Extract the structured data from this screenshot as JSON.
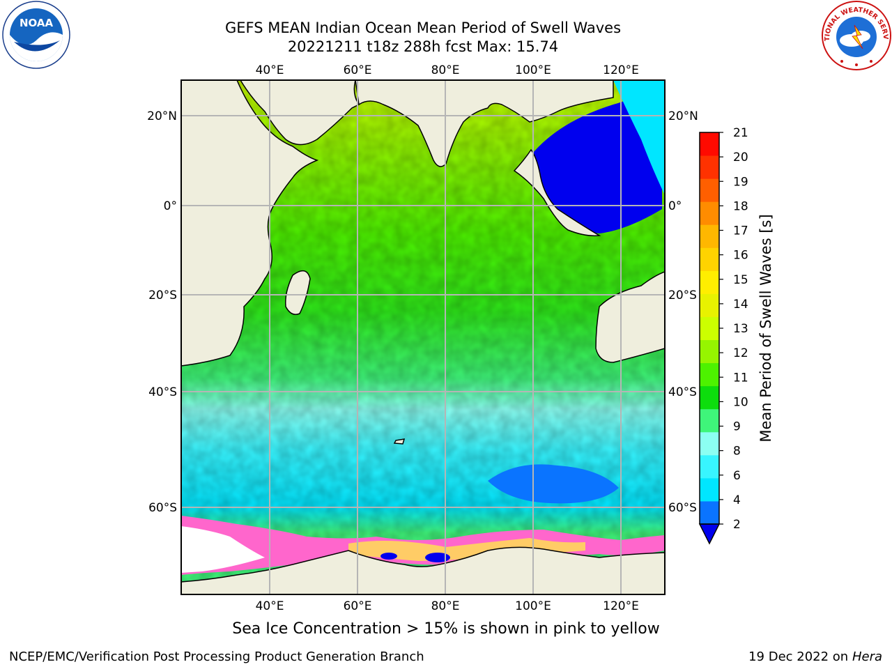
{
  "header": {
    "title_line1": "GEFS MEAN Indian Ocean Mean Period of Swell Waves",
    "title_line2": "20221211 t18z 288h fcst   Max: 15.74"
  },
  "map": {
    "lon_ticks": [
      "40°E",
      "60°E",
      "80°E",
      "100°E",
      "120°E"
    ],
    "lat_ticks": [
      "20°N",
      "0°",
      "20°S",
      "40°S",
      "60°S"
    ],
    "colors": {
      "land": "#efeedd",
      "ice": "#ff66cc",
      "ice_high": "#ffcc66",
      "open": "#ffffff",
      "grid": "#b5b5b5"
    }
  },
  "colorbar": {
    "label": "Mean Period of Swell Waves [s]",
    "ticks": [
      "2",
      "4",
      "6",
      "8",
      "9",
      "10",
      "11",
      "12",
      "13",
      "14",
      "15",
      "16",
      "17",
      "18",
      "19",
      "20",
      "21"
    ],
    "colors": [
      "#0a74ff",
      "#00e6ff",
      "#38f5ff",
      "#8cfff2",
      "#3ff57a",
      "#0ddd0d",
      "#4df200",
      "#96f500",
      "#ccff00",
      "#e8f200",
      "#ffee00",
      "#ffd300",
      "#ffb700",
      "#ff8c00",
      "#ff5f00",
      "#ff3200",
      "#ff0a00"
    ],
    "under_color": "#0000ee"
  },
  "footer": {
    "note": "Sea Ice Concentration > 15% is shown in pink to yellow",
    "left": "NCEP/EMC/Verification Post Processing Product Generation Branch",
    "right_prefix": "19 Dec 2022 on",
    "right_host": "Hera"
  },
  "logos": {
    "noaa_text": "NOAA",
    "nws_text": "NATIONAL WEATHER SERVICE"
  }
}
